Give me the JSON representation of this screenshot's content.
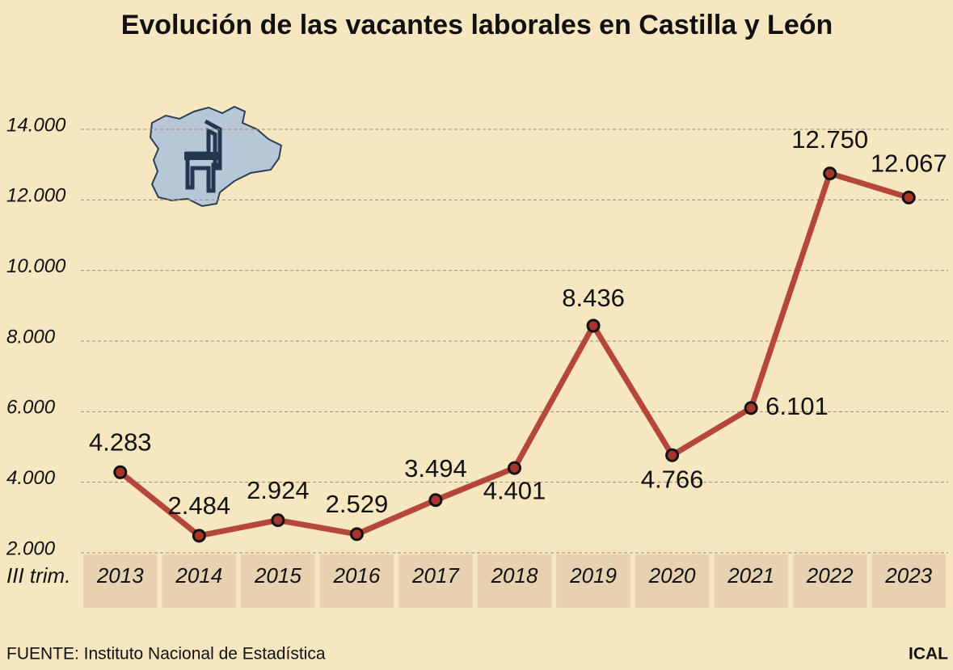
{
  "chart_data": {
    "type": "line",
    "title": "Evolución de las vacantes laborales en Castilla y León",
    "x_label": "III trim.",
    "source": "FUENTE: Instituto Nacional de Estadística",
    "credit": "ICAL",
    "categories": [
      "2013",
      "2014",
      "2015",
      "2016",
      "2017",
      "2018",
      "2019",
      "2020",
      "2021",
      "2022",
      "2023"
    ],
    "values": [
      4283,
      2484,
      2924,
      2529,
      3494,
      4401,
      8436,
      4766,
      6101,
      12750,
      12067
    ],
    "value_labels": [
      "4.283",
      "2.484",
      "2.924",
      "2.529",
      "3.494",
      "4.401",
      "8.436",
      "4.766",
      "6.101",
      "12.750",
      "12.067"
    ],
    "color": "#b5473a",
    "ylim": [
      2000,
      14000
    ],
    "yticks": [
      {
        "value": 2000,
        "label": "2.000"
      },
      {
        "value": 4000,
        "label": "4.000"
      },
      {
        "value": 6000,
        "label": "6.000"
      },
      {
        "value": 8000,
        "label": "8.000"
      },
      {
        "value": 10000,
        "label": "10.000"
      },
      {
        "value": 12000,
        "label": "12.000"
      },
      {
        "value": 14000,
        "label": "14.000"
      }
    ],
    "grid": true
  }
}
